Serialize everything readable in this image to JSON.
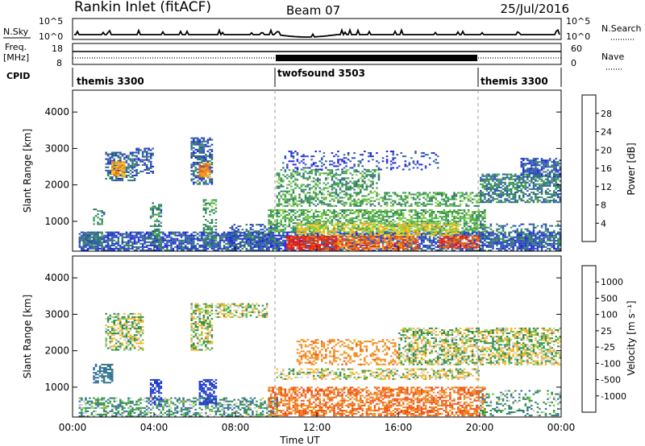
{
  "header": {
    "station": "Rankin Inlet (fitACF)",
    "beam": "Beam 07",
    "date": "25/Jul/2016"
  },
  "top_panels": {
    "nsky_label": "N.Sky",
    "nsearch_label": "N.Search",
    "noise_ticks_left": [
      "10^5",
      "10^0"
    ],
    "noise_ticks_right": [
      "10^5",
      "10^0"
    ],
    "freq_label_line1": "Freq.",
    "freq_label_line2": "[MHz]",
    "freq_ticks": [
      "18",
      "8"
    ],
    "nave_label": "Nave",
    "nave_ticks": [
      "60",
      "0"
    ],
    "cpid_label": "CPID",
    "cpid_segments": [
      {
        "name": "themis 3300",
        "start_h": 0,
        "end_h": 10
      },
      {
        "name": "twofsound 3503",
        "start_h": 10,
        "end_h": 20
      },
      {
        "name": "themis 3300",
        "start_h": 20,
        "end_h": 24
      }
    ]
  },
  "axes": {
    "ylabel": "Slant Range [km]",
    "yticks": [
      "4000",
      "3000",
      "2000",
      "1000"
    ],
    "xticks": [
      "00:00",
      "04:00",
      "08:00",
      "12:00",
      "16:00",
      "20:00",
      "00:00"
    ],
    "xlabel": "Time UT"
  },
  "power_colorbar": {
    "label": "Power [dB]",
    "ticks": [
      "28",
      "24",
      "20",
      "16",
      "12",
      "8",
      "4"
    ],
    "colors": [
      "#1e1ee6",
      "#2a4fb8",
      "#2f7a64",
      "#3aa04a",
      "#7ccc3c",
      "#f0d21e",
      "#f5a01e",
      "#f06a14",
      "#e63214",
      "#e61414"
    ]
  },
  "velocity_colorbar": {
    "label": "Velocity [m s⁻¹]",
    "ticks": [
      "1000",
      "500",
      "100",
      "25",
      "-25",
      "-100",
      "-500",
      "-1000"
    ],
    "colors": [
      "#1e3cc8",
      "#2e6a9c",
      "#2e8a4a",
      "#5cc83a",
      "#c8c8c8",
      "#f5b428",
      "#f08c1e",
      "#f05014",
      "#e61414"
    ]
  },
  "chart_data": [
    {
      "type": "heatmap",
      "title": "Power",
      "xlabel": "Time UT",
      "ylabel": "Slant Range [km]",
      "xlim_hours": [
        0,
        24
      ],
      "ylim_km": [
        180,
        4600
      ],
      "clim_db": [
        0,
        32
      ],
      "blobs": [
        {
          "t0": 0.3,
          "t1": 24,
          "r0": 180,
          "r1": 700,
          "v": 5,
          "d": 0.75
        },
        {
          "t0": 0.5,
          "t1": 1.5,
          "r0": 300,
          "r1": 700,
          "v": 8,
          "d": 0.55
        },
        {
          "t0": 1.0,
          "t1": 1.6,
          "r0": 900,
          "r1": 1350,
          "v": 10,
          "d": 0.5
        },
        {
          "t0": 1.6,
          "t1": 3.2,
          "r0": 2100,
          "r1": 2900,
          "v": 6,
          "d": 0.65
        },
        {
          "t0": 1.9,
          "t1": 2.6,
          "r0": 2200,
          "r1": 2650,
          "v": 20,
          "d": 0.85
        },
        {
          "t0": 3.1,
          "t1": 4.0,
          "r0": 2300,
          "r1": 3000,
          "v": 5,
          "d": 0.45
        },
        {
          "t0": 3.8,
          "t1": 4.3,
          "r0": 350,
          "r1": 1500,
          "v": 9,
          "d": 0.45
        },
        {
          "t0": 5.8,
          "t1": 6.8,
          "r0": 2000,
          "r1": 3300,
          "v": 6,
          "d": 0.6
        },
        {
          "t0": 6.2,
          "t1": 6.7,
          "r0": 2200,
          "r1": 2600,
          "v": 22,
          "d": 0.85
        },
        {
          "t0": 6.4,
          "t1": 7.0,
          "r0": 300,
          "r1": 1600,
          "v": 10,
          "d": 0.45
        },
        {
          "t0": 7.6,
          "t1": 9.9,
          "r0": 300,
          "r1": 900,
          "v": 6,
          "d": 0.5
        },
        {
          "t0": 9.6,
          "t1": 20.3,
          "r0": 700,
          "r1": 1300,
          "v": 12,
          "d": 0.6
        },
        {
          "t0": 10.0,
          "t1": 20.0,
          "r0": 1400,
          "r1": 1800,
          "v": 11,
          "d": 0.5
        },
        {
          "t0": 10.0,
          "t1": 15.0,
          "r0": 1800,
          "r1": 2400,
          "v": 10,
          "d": 0.45
        },
        {
          "t0": 10.3,
          "t1": 18.0,
          "r0": 2400,
          "r1": 2900,
          "v": 4,
          "d": 0.25
        },
        {
          "t0": 10.5,
          "t1": 13.0,
          "r0": 200,
          "r1": 600,
          "v": 28,
          "d": 0.8
        },
        {
          "t0": 13.0,
          "t1": 17.0,
          "r0": 200,
          "r1": 600,
          "v": 24,
          "d": 0.7
        },
        {
          "t0": 18.0,
          "t1": 20.0,
          "r0": 250,
          "r1": 600,
          "v": 26,
          "d": 0.7
        },
        {
          "t0": 11.0,
          "t1": 19.0,
          "r0": 600,
          "r1": 950,
          "v": 18,
          "d": 0.55
        },
        {
          "t0": 20.0,
          "t1": 24.0,
          "r0": 1500,
          "r1": 2300,
          "v": 8,
          "d": 0.6
        },
        {
          "t0": 22.0,
          "t1": 24.0,
          "r0": 2200,
          "r1": 2700,
          "v": 5,
          "d": 0.7
        },
        {
          "t0": 20.0,
          "t1": 24.0,
          "r0": 400,
          "r1": 900,
          "v": 7,
          "d": 0.35
        }
      ]
    },
    {
      "type": "heatmap",
      "title": "Velocity",
      "xlabel": "Time UT",
      "ylabel": "Slant Range [km]",
      "xlim_hours": [
        0,
        24
      ],
      "ylim_km": [
        180,
        4600
      ],
      "clim_ms": [
        -1000,
        1000
      ],
      "blobs": [
        {
          "t0": 0.3,
          "t1": 10,
          "r0": 180,
          "r1": 700,
          "v": 60,
          "d": 0.55
        },
        {
          "t0": 1.0,
          "t1": 2.0,
          "r0": 1100,
          "r1": 1600,
          "v": 150,
          "d": 0.55
        },
        {
          "t0": 1.6,
          "t1": 3.5,
          "r0": 2000,
          "r1": 3000,
          "v": 0,
          "d": 0.55
        },
        {
          "t0": 3.8,
          "t1": 4.3,
          "r0": 500,
          "r1": 1200,
          "v": 700,
          "d": 0.6
        },
        {
          "t0": 5.8,
          "t1": 6.8,
          "r0": 2000,
          "r1": 3300,
          "v": 0,
          "d": 0.55
        },
        {
          "t0": 6.2,
          "t1": 7.0,
          "r0": 500,
          "r1": 1200,
          "v": 700,
          "d": 0.65
        },
        {
          "t0": 7.0,
          "t1": 9.5,
          "r0": 2900,
          "r1": 3300,
          "v": 0,
          "d": 0.55
        },
        {
          "t0": 9.6,
          "t1": 20.3,
          "r0": 200,
          "r1": 1000,
          "v": -250,
          "d": 0.6
        },
        {
          "t0": 10.0,
          "t1": 20.0,
          "r0": 1200,
          "r1": 1500,
          "v": -20,
          "d": 0.45
        },
        {
          "t0": 11.0,
          "t1": 16.0,
          "r0": 1600,
          "r1": 2300,
          "v": -180,
          "d": 0.4
        },
        {
          "t0": 16.0,
          "t1": 24.0,
          "r0": 1600,
          "r1": 2600,
          "v": 0,
          "d": 0.55
        },
        {
          "t0": 20.0,
          "t1": 24.0,
          "r0": 200,
          "r1": 900,
          "v": 60,
          "d": 0.3
        }
      ]
    }
  ]
}
